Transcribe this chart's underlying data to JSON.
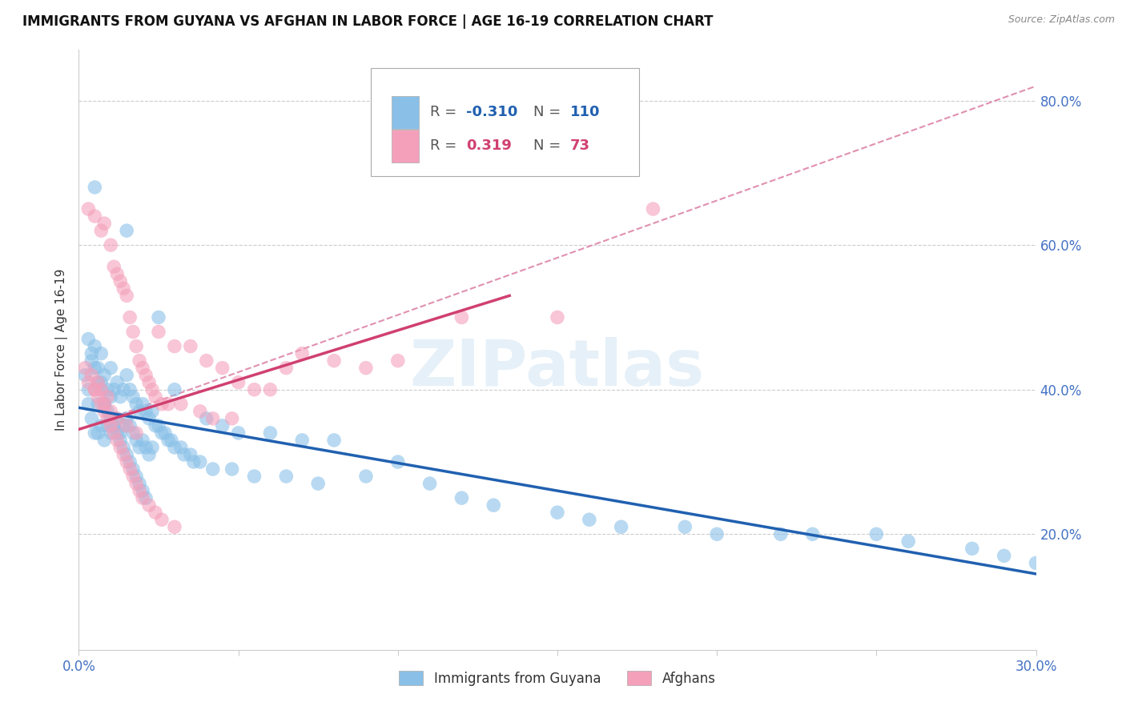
{
  "title": "IMMIGRANTS FROM GUYANA VS AFGHAN IN LABOR FORCE | AGE 16-19 CORRELATION CHART",
  "source": "Source: ZipAtlas.com",
  "ylabel": "In Labor Force | Age 16-19",
  "xlim": [
    0.0,
    0.3
  ],
  "ylim": [
    0.04,
    0.87
  ],
  "yticks": [
    0.2,
    0.4,
    0.6,
    0.8
  ],
  "ytick_labels": [
    "20.0%",
    "40.0%",
    "60.0%",
    "80.0%"
  ],
  "blue_R": -0.31,
  "blue_N": 110,
  "pink_R": 0.319,
  "pink_N": 73,
  "blue_color": "#8ac0e8",
  "pink_color": "#f4a0bb",
  "blue_line_color": "#2060b0",
  "pink_line_color": "#d04070",
  "pink_dash_color": "#e090b0",
  "legend_label_blue": "Immigrants from Guyana",
  "legend_label_pink": "Afghans",
  "watermark": "ZIPatlas",
  "blue_trend": [
    0.0,
    0.3,
    0.375,
    0.145
  ],
  "pink_trend_solid": [
    0.0,
    0.135,
    0.345,
    0.53
  ],
  "pink_trend_dash": [
    0.0,
    0.3,
    0.345,
    0.82
  ],
  "blue_scatter_x": [
    0.002,
    0.003,
    0.003,
    0.004,
    0.004,
    0.005,
    0.005,
    0.005,
    0.006,
    0.006,
    0.006,
    0.007,
    0.007,
    0.007,
    0.008,
    0.008,
    0.008,
    0.009,
    0.009,
    0.01,
    0.01,
    0.01,
    0.011,
    0.011,
    0.012,
    0.012,
    0.013,
    0.013,
    0.014,
    0.014,
    0.015,
    0.015,
    0.015,
    0.016,
    0.016,
    0.017,
    0.017,
    0.018,
    0.018,
    0.019,
    0.019,
    0.02,
    0.02,
    0.021,
    0.021,
    0.022,
    0.022,
    0.023,
    0.023,
    0.024,
    0.025,
    0.025,
    0.026,
    0.027,
    0.028,
    0.029,
    0.03,
    0.03,
    0.032,
    0.033,
    0.035,
    0.036,
    0.038,
    0.04,
    0.042,
    0.045,
    0.048,
    0.05,
    0.055,
    0.06,
    0.065,
    0.07,
    0.075,
    0.08,
    0.09,
    0.1,
    0.11,
    0.12,
    0.13,
    0.15,
    0.16,
    0.17,
    0.19,
    0.2,
    0.22,
    0.23,
    0.25,
    0.26,
    0.28,
    0.29,
    0.3,
    0.003,
    0.004,
    0.005,
    0.006,
    0.007,
    0.008,
    0.009,
    0.01,
    0.011,
    0.012,
    0.013,
    0.014,
    0.015,
    0.016,
    0.017,
    0.018,
    0.019,
    0.02,
    0.021
  ],
  "blue_scatter_y": [
    0.42,
    0.4,
    0.38,
    0.44,
    0.36,
    0.68,
    0.46,
    0.34,
    0.43,
    0.38,
    0.34,
    0.45,
    0.41,
    0.35,
    0.42,
    0.38,
    0.33,
    0.4,
    0.35,
    0.43,
    0.39,
    0.34,
    0.4,
    0.35,
    0.41,
    0.36,
    0.39,
    0.34,
    0.4,
    0.35,
    0.62,
    0.42,
    0.36,
    0.4,
    0.35,
    0.39,
    0.34,
    0.38,
    0.33,
    0.37,
    0.32,
    0.38,
    0.33,
    0.37,
    0.32,
    0.36,
    0.31,
    0.37,
    0.32,
    0.35,
    0.5,
    0.35,
    0.34,
    0.34,
    0.33,
    0.33,
    0.4,
    0.32,
    0.32,
    0.31,
    0.31,
    0.3,
    0.3,
    0.36,
    0.29,
    0.35,
    0.29,
    0.34,
    0.28,
    0.34,
    0.28,
    0.33,
    0.27,
    0.33,
    0.28,
    0.3,
    0.27,
    0.25,
    0.24,
    0.23,
    0.22,
    0.21,
    0.21,
    0.2,
    0.2,
    0.2,
    0.2,
    0.19,
    0.18,
    0.17,
    0.16,
    0.47,
    0.45,
    0.43,
    0.41,
    0.4,
    0.38,
    0.37,
    0.36,
    0.35,
    0.34,
    0.33,
    0.32,
    0.31,
    0.3,
    0.29,
    0.28,
    0.27,
    0.26,
    0.25
  ],
  "pink_scatter_x": [
    0.002,
    0.003,
    0.004,
    0.005,
    0.005,
    0.006,
    0.007,
    0.007,
    0.008,
    0.008,
    0.009,
    0.01,
    0.01,
    0.011,
    0.012,
    0.012,
    0.013,
    0.014,
    0.015,
    0.015,
    0.016,
    0.017,
    0.018,
    0.018,
    0.019,
    0.02,
    0.021,
    0.022,
    0.023,
    0.024,
    0.025,
    0.026,
    0.028,
    0.03,
    0.032,
    0.035,
    0.038,
    0.04,
    0.042,
    0.045,
    0.048,
    0.05,
    0.055,
    0.06,
    0.065,
    0.07,
    0.08,
    0.09,
    0.1,
    0.12,
    0.15,
    0.18,
    0.003,
    0.005,
    0.006,
    0.007,
    0.008,
    0.009,
    0.01,
    0.011,
    0.012,
    0.013,
    0.014,
    0.015,
    0.016,
    0.017,
    0.018,
    0.019,
    0.02,
    0.022,
    0.024,
    0.026,
    0.03
  ],
  "pink_scatter_y": [
    0.43,
    0.65,
    0.42,
    0.64,
    0.4,
    0.41,
    0.62,
    0.4,
    0.63,
    0.38,
    0.39,
    0.6,
    0.37,
    0.57,
    0.56,
    0.36,
    0.55,
    0.54,
    0.53,
    0.35,
    0.5,
    0.48,
    0.46,
    0.34,
    0.44,
    0.43,
    0.42,
    0.41,
    0.4,
    0.39,
    0.48,
    0.38,
    0.38,
    0.46,
    0.38,
    0.46,
    0.37,
    0.44,
    0.36,
    0.43,
    0.36,
    0.41,
    0.4,
    0.4,
    0.43,
    0.45,
    0.44,
    0.43,
    0.44,
    0.5,
    0.5,
    0.65,
    0.41,
    0.4,
    0.39,
    0.38,
    0.37,
    0.36,
    0.35,
    0.34,
    0.33,
    0.32,
    0.31,
    0.3,
    0.29,
    0.28,
    0.27,
    0.26,
    0.25,
    0.24,
    0.23,
    0.22,
    0.21
  ],
  "grid_color": "#cccccc",
  "axis_color": "#4472c4",
  "background": "#ffffff"
}
